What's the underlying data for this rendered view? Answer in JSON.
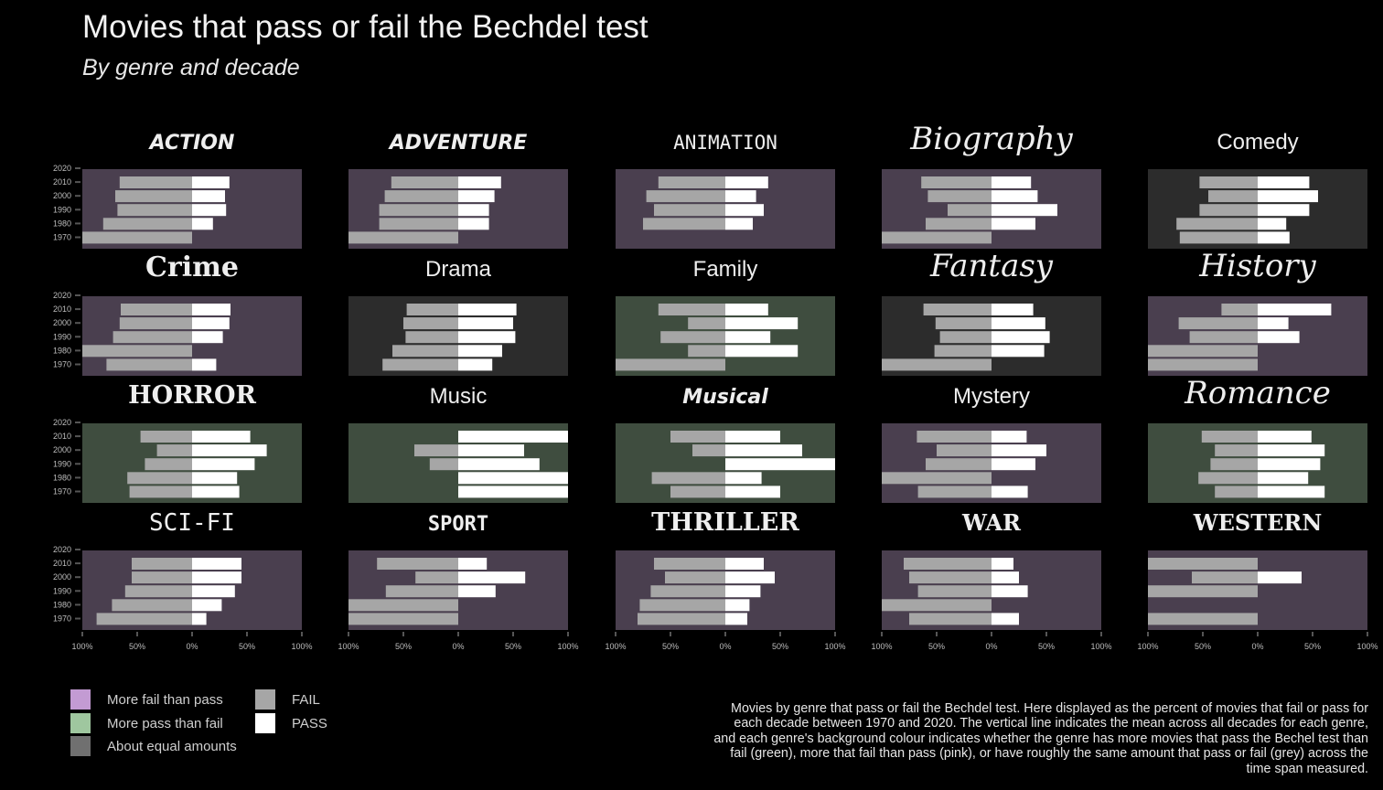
{
  "title": "Movies that pass or fail the Bechdel test",
  "subtitle": "By genre and decade",
  "caption": "Movies by genre that pass or fail the Bechdel test. Here displayed as the percent of movies that fail or pass for each decade between 1970 and 2020. The vertical line indicates the mean across all decades for each genre, and each genre's background colour indicates whether the genre has more movies that pass the Bechel test than fail (green), more that fail than pass (pink), or have roughly the same amount that pass or fail (grey) across the time span measured.",
  "legend": {
    "background": [
      {
        "label": "More fail than pass",
        "color": "#c39bd3"
      },
      {
        "label": "More pass than fail",
        "color": "#9fc79f"
      },
      {
        "label": "About equal amounts",
        "color": "#707070"
      }
    ],
    "bars": [
      {
        "label": "FAIL",
        "color": "#a6a6a6"
      },
      {
        "label": "PASS",
        "color": "#ffffff"
      }
    ]
  },
  "colors": {
    "fail_more_bg": "#4a3f4f",
    "pass_more_bg": "#3f4d3f",
    "equal_bg": "#2c2c2c",
    "fail_bar": "#a6a6a6",
    "pass_bar": "#ffffff"
  },
  "chart_data": {
    "type": "bar",
    "orientation": "horizontal diverging",
    "y_ticks": [
      "2020",
      "2010",
      "2000",
      "1990",
      "1980",
      "1970"
    ],
    "x_ticks": [
      "100%",
      "50%",
      "0%",
      "50%",
      "100%"
    ],
    "xlim": [
      -100,
      100
    ],
    "decades": [
      "2010",
      "2000",
      "1990",
      "1980",
      "1970"
    ],
    "facets": [
      {
        "genre": "ACTION",
        "background": "fail_more",
        "font": "impact",
        "fail": [
          66,
          70,
          68,
          81,
          100
        ],
        "pass": [
          34,
          30,
          31,
          19,
          0
        ]
      },
      {
        "genre": "ADVENTURE",
        "background": "fail_more",
        "font": "impact",
        "fail": [
          61,
          67,
          72,
          72,
          100
        ],
        "pass": [
          39,
          33,
          28,
          28,
          0
        ]
      },
      {
        "genre": "ANIMATION",
        "background": "fail_more",
        "font": "pixel",
        "fail": [
          61,
          72,
          65,
          75,
          0
        ],
        "pass": [
          39,
          28,
          35,
          25,
          0
        ]
      },
      {
        "genre": "Biography",
        "background": "fail_more",
        "font": "script",
        "fail": [
          64,
          58,
          40,
          60,
          100
        ],
        "pass": [
          36,
          42,
          60,
          40,
          0
        ]
      },
      {
        "genre": "Comedy",
        "background": "equal",
        "font": "plain",
        "fail": [
          53,
          45,
          53,
          74,
          71
        ],
        "pass": [
          47,
          55,
          47,
          26,
          29
        ]
      },
      {
        "genre": "Crime",
        "background": "fail_more",
        "font": "gothic",
        "fail": [
          65,
          66,
          72,
          100,
          78
        ],
        "pass": [
          35,
          34,
          28,
          0,
          22
        ]
      },
      {
        "genre": "Drama",
        "background": "equal",
        "font": "plain",
        "fail": [
          47,
          50,
          48,
          60,
          69
        ],
        "pass": [
          53,
          50,
          52,
          40,
          31
        ]
      },
      {
        "genre": "Family",
        "background": "pass_more",
        "font": "plain",
        "fail": [
          61,
          34,
          59,
          34,
          100
        ],
        "pass": [
          39,
          66,
          41,
          66,
          0
        ]
      },
      {
        "genre": "Fantasy",
        "background": "equal",
        "font": "script",
        "fail": [
          62,
          51,
          47,
          52,
          100
        ],
        "pass": [
          38,
          49,
          53,
          48,
          0
        ]
      },
      {
        "genre": "History",
        "background": "fail_more",
        "font": "script",
        "fail": [
          33,
          72,
          62,
          100,
          100
        ],
        "pass": [
          67,
          28,
          38,
          0,
          0
        ]
      },
      {
        "genre": "HORROR",
        "background": "pass_more",
        "font": "horror",
        "fail": [
          47,
          32,
          43,
          59,
          57
        ],
        "pass": [
          53,
          68,
          57,
          41,
          43
        ]
      },
      {
        "genre": "Music",
        "background": "pass_more",
        "font": "plain",
        "fail": [
          0,
          40,
          26,
          0,
          0
        ],
        "pass": [
          100,
          60,
          74,
          100,
          100
        ]
      },
      {
        "genre": "Musical",
        "background": "pass_more",
        "font": "impact",
        "fail": [
          50,
          30,
          0,
          67,
          50
        ],
        "pass": [
          50,
          70,
          100,
          33,
          50
        ]
      },
      {
        "genre": "Mystery",
        "background": "fail_more",
        "font": "plain",
        "fail": [
          68,
          50,
          60,
          100,
          67
        ],
        "pass": [
          32,
          50,
          40,
          0,
          33
        ]
      },
      {
        "genre": "Romance",
        "background": "pass_more",
        "font": "script",
        "fail": [
          51,
          39,
          43,
          54,
          39
        ],
        "pass": [
          49,
          61,
          57,
          46,
          61
        ]
      },
      {
        "genre": "SCI-FI",
        "background": "fail_more",
        "font": "lcd",
        "fail": [
          55,
          55,
          61,
          73,
          87
        ],
        "pass": [
          45,
          45,
          39,
          27,
          13
        ]
      },
      {
        "genre": "SPORT",
        "background": "fail_more",
        "font": "college",
        "fail": [
          74,
          39,
          66,
          100,
          100
        ],
        "pass": [
          26,
          61,
          34,
          0,
          0
        ]
      },
      {
        "genre": "THRILLER",
        "background": "fail_more",
        "font": "horror",
        "fail": [
          65,
          55,
          68,
          78,
          80
        ],
        "pass": [
          35,
          45,
          32,
          22,
          20
        ]
      },
      {
        "genre": "WAR",
        "background": "fail_more",
        "font": "serif",
        "fail": [
          80,
          75,
          67,
          100,
          75
        ],
        "pass": [
          20,
          25,
          33,
          0,
          25
        ]
      },
      {
        "genre": "WESTERN",
        "background": "fail_more",
        "font": "western",
        "fail": [
          100,
          60,
          100,
          0,
          100
        ],
        "pass": [
          0,
          40,
          0,
          0,
          0
        ]
      }
    ]
  }
}
